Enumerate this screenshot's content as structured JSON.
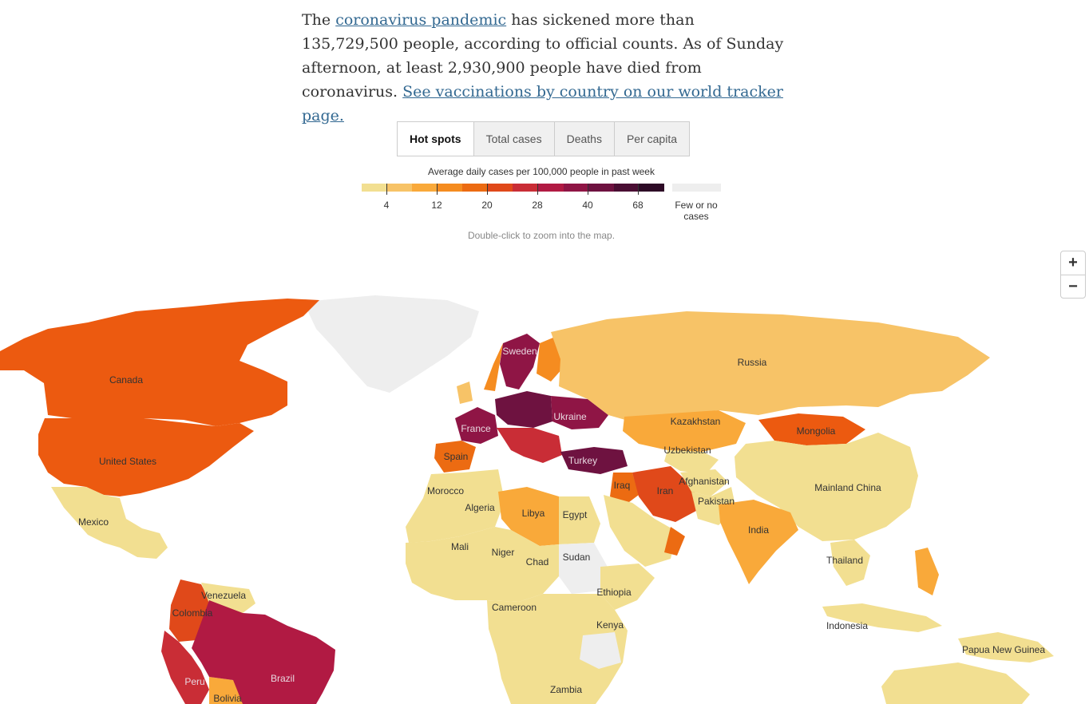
{
  "intro": {
    "t1": "The ",
    "link1": "coronavirus pandemic",
    "t2": " has sickened more than 135,729,500 people, according to official counts. As of Sunday afternoon, at least 2,930,900 people have died from coronavirus. ",
    "link2": "See vaccinations by country on our world tracker page."
  },
  "tabs": [
    "Hot spots",
    "Total cases",
    "Deaths",
    "Per capita"
  ],
  "legend": {
    "title": "Average daily cases per 100,000 people in past week",
    "ticks": [
      "4",
      "12",
      "20",
      "28",
      "40",
      "68"
    ],
    "none_label": "Few or no cases",
    "colors": [
      "#f2df91",
      "#f7c367",
      "#f9a93a",
      "#f58c20",
      "#ec6b12",
      "#e0491a",
      "#c92d36",
      "#b11a43",
      "#8f1545",
      "#6e1240",
      "#4a0e33",
      "#2d0a26"
    ],
    "none_color": "#eeeeee"
  },
  "hint": "Double-click to zoom into the map.",
  "zoom": {
    "in": "+",
    "out": "−"
  },
  "labels": {
    "canada": "Canada",
    "united_states": "United States",
    "mexico": "Mexico",
    "venezuela": "Venezuela",
    "colombia": "Colombia",
    "peru": "Peru",
    "brazil": "Brazil",
    "bolivia": "Bolivia",
    "russia": "Russia",
    "sweden": "Sweden",
    "ukraine": "Ukraine",
    "france": "France",
    "spain": "Spain",
    "turkey": "Turkey",
    "kazakhstan": "Kazakhstan",
    "mongolia": "Mongolia",
    "uzbekistan": "Uzbekistan",
    "afghanistan": "Afghanistan",
    "pakistan": "Pakistan",
    "iraq": "Iraq",
    "iran": "Iran",
    "mainland_china": "Mainland China",
    "india": "India",
    "thailand": "Thailand",
    "indonesia": "Indonesia",
    "papua_new_guinea": "Papua New Guinea",
    "morocco": "Morocco",
    "algeria": "Algeria",
    "libya": "Libya",
    "egypt": "Egypt",
    "mali": "Mali",
    "niger": "Niger",
    "chad": "Chad",
    "sudan": "Sudan",
    "ethiopia": "Ethiopia",
    "cameroon": "Cameroon",
    "kenya": "Kenya",
    "zambia": "Zambia"
  }
}
